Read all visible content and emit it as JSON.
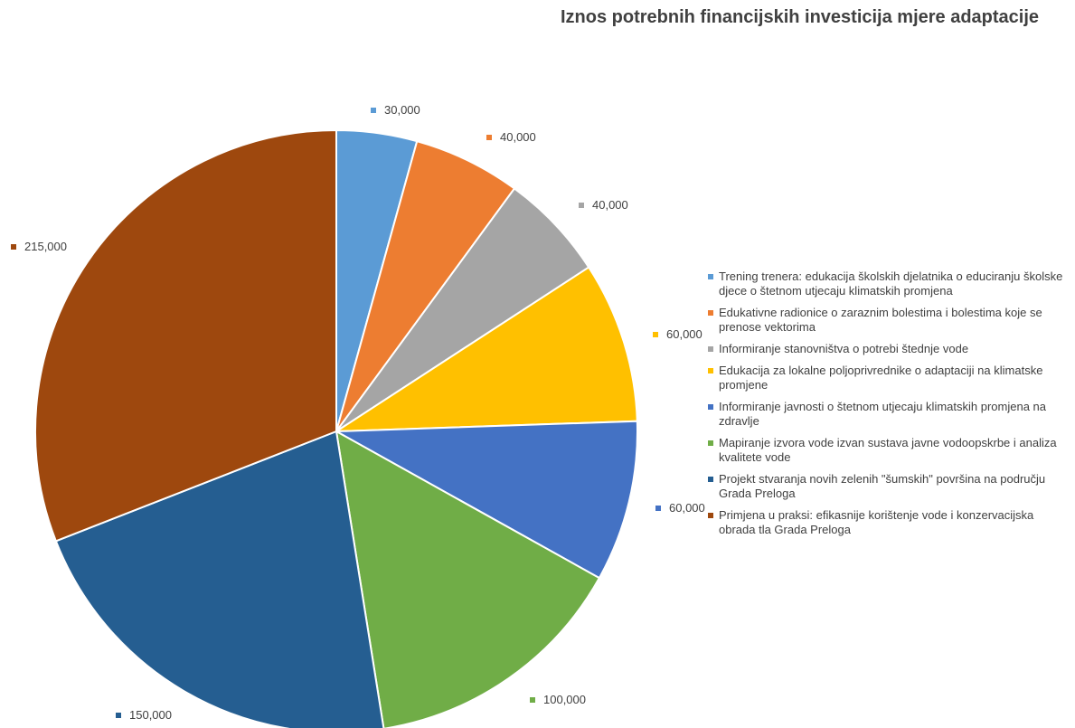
{
  "chart_data": {
    "type": "pie",
    "title": "Iznos potrebnih financijskih investicija mjere adaptacije",
    "legend_position": "right",
    "slices": [
      {
        "name": "Trening trenera: edukacija školskih djelatnika o educiranju školske djece o štetnom utjecaju klimatskih promjena",
        "value": 30000,
        "label": "30,000",
        "color": "#5B9BD5"
      },
      {
        "name": "Edukativne radionice o zaraznim bolestima i bolestima koje se prenose vektorima",
        "value": 40000,
        "label": "40,000",
        "color": "#ED7D31"
      },
      {
        "name": "Informiranje stanovništva o potrebi štednje vode",
        "value": 40000,
        "label": "40,000",
        "color": "#A5A5A5"
      },
      {
        "name": "Edukacija za lokalne poljoprivrednike o adaptaciji na klimatske promjene",
        "value": 60000,
        "label": "60,000",
        "color": "#FFC000"
      },
      {
        "name": "Informiranje javnosti o štetnom utjecaju klimatskih promjena na zdravlje",
        "value": 60000,
        "label": "60,000",
        "color": "#4472C4"
      },
      {
        "name": "Mapiranje izvora vode izvan sustava javne vodoopskrbe i analiza kvalitete vode",
        "value": 100000,
        "label": "100,000",
        "color": "#70AD47"
      },
      {
        "name": "Projekt stvaranja novih zelenih \"šumskih\" površina na području Grada Preloga",
        "value": 150000,
        "label": "150,000",
        "color": "#255E91"
      },
      {
        "name": "Primjena u praksi: efikasnije korištenje vode i konzervacijska obrada tla Grada Preloga",
        "value": 215000,
        "label": "215,000",
        "color": "#9E480E"
      }
    ]
  }
}
